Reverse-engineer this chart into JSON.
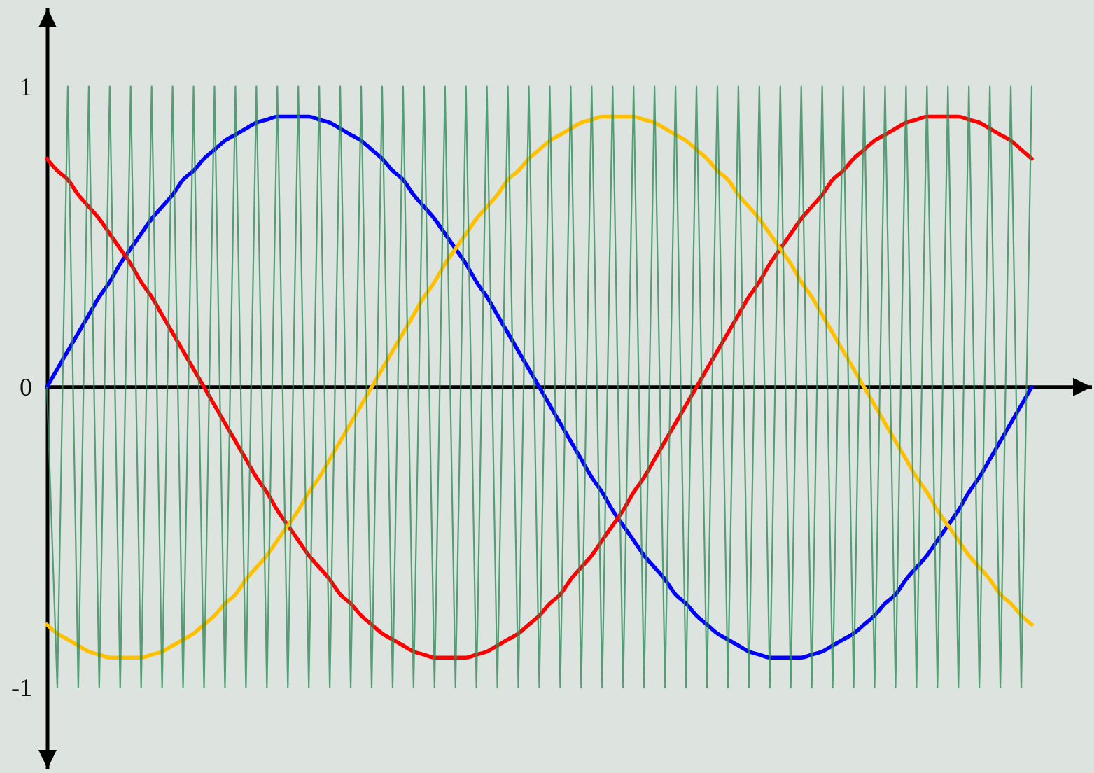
{
  "chart_data": {
    "type": "line",
    "categories": [
      null,
      null,
      null,
      null,
      null,
      null,
      null,
      null,
      null,
      null,
      null,
      null,
      null,
      null,
      null,
      null,
      null,
      null,
      null,
      null,
      null,
      null,
      null,
      null,
      null,
      null,
      null,
      null,
      null,
      null,
      null,
      null,
      null,
      null,
      null,
      null,
      null,
      null,
      null,
      null,
      null,
      null,
      null,
      null,
      null,
      null,
      null,
      null,
      null,
      null,
      null,
      null,
      null,
      null,
      null,
      null,
      null,
      null,
      null,
      null,
      null,
      null,
      null,
      null,
      null,
      null,
      null,
      null,
      null,
      null,
      null,
      null,
      null,
      null,
      null,
      null,
      null,
      null,
      null,
      null,
      null,
      null,
      null,
      null,
      null,
      null,
      null,
      null,
      null,
      null,
      null,
      null,
      null,
      null,
      null
    ],
    "series": [
      {
        "color": "#0000ff",
        "values": [
          0,
          0.06,
          0.12,
          0.18,
          0.24,
          0.3,
          0.35,
          0.41,
          0.46,
          0.51,
          0.56,
          0.6,
          0.64,
          0.69,
          0.72,
          0.76,
          0.79,
          0.82,
          0.84,
          0.86,
          0.88,
          0.89,
          0.9,
          0.9,
          0.9,
          0.9,
          0.89,
          0.88,
          0.86,
          0.84,
          0.82,
          0.79,
          0.76,
          0.72,
          0.69,
          0.64,
          0.6,
          0.56,
          0.51,
          0.46,
          0.41,
          0.35,
          0.3,
          0.24,
          0.18,
          0.12,
          0.06,
          0,
          -0.06,
          -0.12,
          -0.18,
          -0.24,
          -0.3,
          -0.35,
          -0.41,
          -0.46,
          -0.51,
          -0.56,
          -0.6,
          -0.64,
          -0.69,
          -0.72,
          -0.76,
          -0.79,
          -0.82,
          -0.84,
          -0.86,
          -0.88,
          -0.89,
          -0.9,
          -0.9,
          -0.9,
          -0.9,
          -0.89,
          -0.88,
          -0.86,
          -0.84,
          -0.82,
          -0.79,
          -0.76,
          -0.72,
          -0.69,
          -0.64,
          -0.6,
          -0.56,
          -0.51,
          -0.46,
          -0.41,
          -0.35,
          -0.3,
          -0.24,
          -0.18,
          -0.12,
          -0.06,
          0
        ]
      },
      {
        "color": "#ff0000",
        "values": [
          0.76,
          0.72,
          0.69,
          0.64,
          0.6,
          0.56,
          0.51,
          0.46,
          0.41,
          0.35,
          0.3,
          0.24,
          0.18,
          0.12,
          0.06,
          0,
          -0.06,
          -0.12,
          -0.18,
          -0.24,
          -0.3,
          -0.35,
          -0.41,
          -0.46,
          -0.51,
          -0.56,
          -0.6,
          -0.64,
          -0.69,
          -0.72,
          -0.76,
          -0.79,
          -0.82,
          -0.84,
          -0.86,
          -0.88,
          -0.89,
          -0.9,
          -0.9,
          -0.9,
          -0.9,
          -0.89,
          -0.88,
          -0.86,
          -0.84,
          -0.82,
          -0.79,
          -0.76,
          -0.72,
          -0.69,
          -0.64,
          -0.6,
          -0.56,
          -0.51,
          -0.46,
          -0.41,
          -0.35,
          -0.3,
          -0.24,
          -0.18,
          -0.12,
          -0.06,
          0,
          0.06,
          0.12,
          0.18,
          0.24,
          0.3,
          0.35,
          0.41,
          0.46,
          0.51,
          0.56,
          0.6,
          0.64,
          0.69,
          0.72,
          0.76,
          0.79,
          0.82,
          0.84,
          0.86,
          0.88,
          0.89,
          0.9,
          0.9,
          0.9,
          0.9,
          0.89,
          0.88,
          0.86,
          0.84,
          0.82,
          0.79,
          0.76
        ]
      },
      {
        "color": "#ffc000",
        "values": [
          -0.79,
          -0.82,
          -0.84,
          -0.86,
          -0.88,
          -0.89,
          -0.9,
          -0.9,
          -0.9,
          -0.9,
          -0.89,
          -0.88,
          -0.86,
          -0.84,
          -0.82,
          -0.79,
          -0.76,
          -0.72,
          -0.69,
          -0.64,
          -0.6,
          -0.56,
          -0.51,
          -0.46,
          -0.41,
          -0.35,
          -0.3,
          -0.24,
          -0.18,
          -0.12,
          -0.06,
          0,
          0.06,
          0.12,
          0.18,
          0.24,
          0.3,
          0.35,
          0.41,
          0.46,
          0.51,
          0.56,
          0.6,
          0.64,
          0.69,
          0.72,
          0.76,
          0.79,
          0.82,
          0.84,
          0.86,
          0.88,
          0.89,
          0.9,
          0.9,
          0.9,
          0.9,
          0.89,
          0.88,
          0.86,
          0.84,
          0.82,
          0.79,
          0.76,
          0.72,
          0.69,
          0.64,
          0.6,
          0.56,
          0.51,
          0.46,
          0.41,
          0.35,
          0.3,
          0.24,
          0.18,
          0.12,
          0.06,
          0,
          -0.06,
          -0.12,
          -0.18,
          -0.24,
          -0.3,
          -0.35,
          -0.41,
          -0.46,
          -0.51,
          -0.56,
          -0.6,
          -0.64,
          -0.69,
          -0.72,
          -0.76,
          -0.79
        ]
      },
      {
        "color": "#2e8b57",
        "values": [
          0,
          -1,
          1,
          -1,
          1,
          -1,
          1,
          -1,
          1,
          -1,
          1,
          -1,
          1,
          -1,
          1,
          -1,
          1,
          -1,
          1,
          -1,
          1,
          -1,
          1,
          -1,
          1,
          -1,
          1,
          -1,
          1,
          -1,
          1,
          -1,
          1,
          -1,
          1,
          -1,
          1,
          -1,
          1,
          -1,
          1,
          -1,
          1,
          -1,
          1,
          -1,
          1,
          -1,
          1,
          -1,
          1,
          -1,
          1,
          -1,
          1,
          -1,
          1,
          -1,
          1,
          -1,
          1,
          -1,
          1,
          -1,
          1,
          -1,
          1,
          -1,
          1,
          -1,
          1,
          -1,
          1,
          -1,
          1,
          -1,
          1,
          -1,
          1,
          -1,
          1,
          -1,
          1,
          -1,
          1,
          -1,
          1,
          -1,
          1,
          -1,
          1,
          -1,
          1,
          -1,
          1
        ]
      }
    ],
    "ylim": [
      -1.27,
      1.26
    ],
    "yticks": [
      -1,
      0,
      1
    ]
  }
}
